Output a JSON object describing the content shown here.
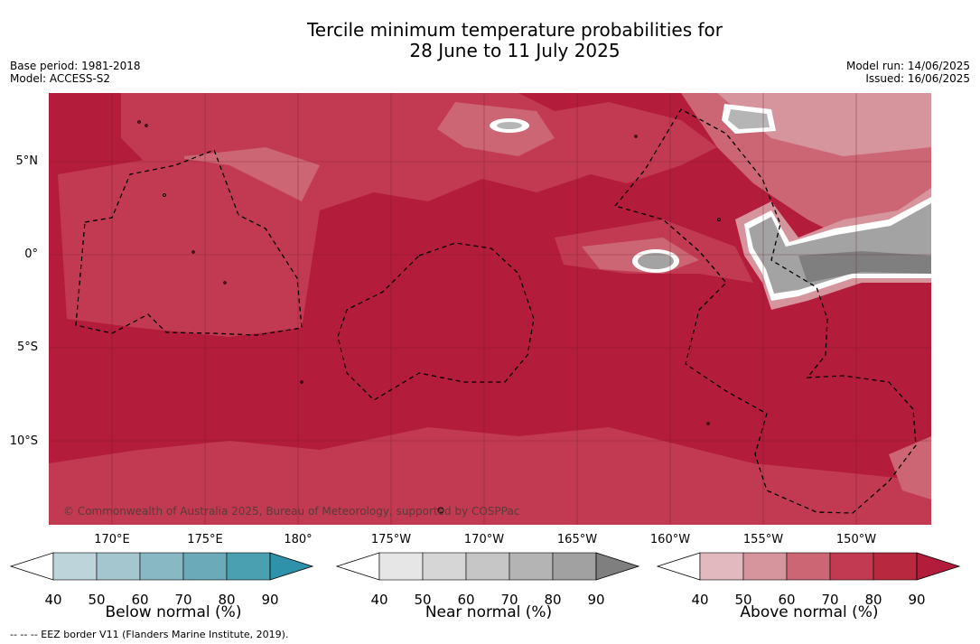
{
  "title_line1": "Tercile minimum temperature probabilities for",
  "title_line2": "28 June to 11 July 2025",
  "base_period": "Base period: 1981-2018",
  "model": "Model: ACCESS-S2",
  "model_run": "Model run: 14/06/2025",
  "issued": "Issued: 16/06/2025",
  "copyright": "© Commonwealth of Australia 2025, Bureau of Meteorology, supported by COSPPac",
  "eez_note": "--  --  -- EEZ border V11 (Flanders Marine Institute, 2019).",
  "lat_labels": [
    "5°N",
    "0°",
    "5°S",
    "10°S"
  ],
  "lon_labels": [
    "170°E",
    "175°E",
    "180°",
    "175°W",
    "170°W",
    "165°W",
    "160°W",
    "155°W",
    "150°W"
  ],
  "colors": {
    "above_70": "#c13a52",
    "above_80": "#b31c3b",
    "above_60": "#cc6674",
    "above_50": "#d6949d",
    "near_70": "#a3a3a3",
    "near_60": "#b5b5b5",
    "near_80": "#7f7f7f"
  },
  "colorbars": [
    {
      "label": "Below normal (%)",
      "ticks": [
        "40",
        "50",
        "60",
        "70",
        "80",
        "90"
      ],
      "colors": [
        "#bdd4db",
        "#a4c7cf",
        "#88b8c4",
        "#6aaab9",
        "#4a9fb1",
        "#2e92aa"
      ]
    },
    {
      "label": "Near normal (%)",
      "ticks": [
        "40",
        "50",
        "60",
        "70",
        "80",
        "90"
      ],
      "colors": [
        "#e6e6e6",
        "#d6d6d6",
        "#c6c6c6",
        "#b4b4b4",
        "#a1a1a1",
        "#7f7f7f"
      ]
    },
    {
      "label": "Above normal (%)",
      "ticks": [
        "40",
        "50",
        "60",
        "70",
        "80",
        "90"
      ],
      "colors": [
        "#e2b9bf",
        "#d6949d",
        "#cc6674",
        "#c13a52",
        "#b8293f",
        "#b31c3b"
      ]
    }
  ]
}
